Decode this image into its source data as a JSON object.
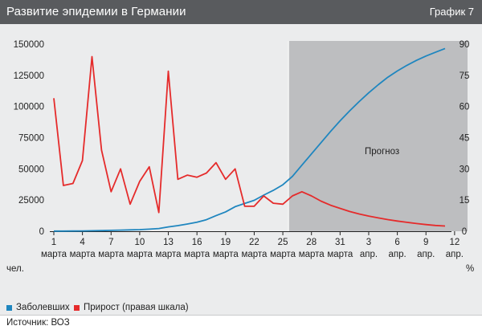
{
  "header": {
    "title": "Развитие эпидемии в Германии",
    "badge": "График 7"
  },
  "footer": {
    "source": "Источник: ВОЗ"
  },
  "chart_data": {
    "type": "line",
    "left_axis": {
      "min": 0,
      "max": 150000,
      "ticks": [
        "0",
        "25000",
        "50000",
        "75000",
        "100000",
        "125000",
        "150000"
      ],
      "unit": "чел."
    },
    "right_axis": {
      "min": 0,
      "max": 90,
      "ticks": [
        "0",
        "15",
        "30",
        "45",
        "60",
        "75",
        "90"
      ],
      "unit": "%"
    },
    "x_ticks": [
      {
        "day": "1",
        "month": "марта"
      },
      {
        "day": "4",
        "month": "марта"
      },
      {
        "day": "7",
        "month": "марта"
      },
      {
        "day": "10",
        "month": "марта"
      },
      {
        "day": "13",
        "month": "марта"
      },
      {
        "day": "16",
        "month": "марта"
      },
      {
        "day": "19",
        "month": "марта"
      },
      {
        "day": "22",
        "month": "марта"
      },
      {
        "day": "25",
        "month": "марта"
      },
      {
        "day": "28",
        "month": "марта"
      },
      {
        "day": "31",
        "month": "марта"
      },
      {
        "day": "3",
        "month": "апр."
      },
      {
        "day": "6",
        "month": "апр."
      },
      {
        "day": "9",
        "month": "апр."
      },
      {
        "day": "12",
        "month": "апр."
      }
    ],
    "forecast": {
      "label": "Прогноз",
      "start_day": 25.6
    },
    "series": [
      {
        "name": "Заболевших",
        "axis": "left",
        "color": "#1f86bf",
        "points": [
          [
            1,
            130
          ],
          [
            2,
            150
          ],
          [
            3,
            190
          ],
          [
            4,
            250
          ],
          [
            5,
            380
          ],
          [
            6,
            500
          ],
          [
            7,
            680
          ],
          [
            8,
            900
          ],
          [
            9,
            1100
          ],
          [
            10,
            1300
          ],
          [
            11,
            1700
          ],
          [
            12,
            2200
          ],
          [
            13,
            3500
          ],
          [
            14,
            4500
          ],
          [
            15,
            5800
          ],
          [
            16,
            7200
          ],
          [
            17,
            9300
          ],
          [
            18,
            12500
          ],
          [
            19,
            15500
          ],
          [
            20,
            19700
          ],
          [
            21,
            22300
          ],
          [
            22,
            24800
          ],
          [
            23,
            29000
          ],
          [
            24,
            32800
          ],
          [
            25,
            37300
          ],
          [
            26,
            44000
          ],
          [
            27,
            53000
          ],
          [
            28,
            62000
          ],
          [
            29,
            71000
          ],
          [
            30,
            80000
          ],
          [
            31,
            88500
          ],
          [
            32,
            96500
          ],
          [
            33,
            104000
          ],
          [
            34,
            111000
          ],
          [
            35,
            117500
          ],
          [
            36,
            123500
          ],
          [
            37,
            128500
          ],
          [
            38,
            133000
          ],
          [
            39,
            137000
          ],
          [
            40,
            140500
          ],
          [
            41,
            143500
          ],
          [
            42,
            146500
          ]
        ]
      },
      {
        "name": "Прирост (правая шкала)",
        "axis": "right",
        "color": "#e52b2b",
        "points": [
          [
            1,
            64
          ],
          [
            2,
            22
          ],
          [
            3,
            23
          ],
          [
            4,
            34
          ],
          [
            5,
            84
          ],
          [
            6,
            39
          ],
          [
            7,
            19
          ],
          [
            8,
            30
          ],
          [
            9,
            13
          ],
          [
            10,
            24
          ],
          [
            11,
            31
          ],
          [
            12,
            9
          ],
          [
            13,
            77
          ],
          [
            14,
            25
          ],
          [
            15,
            27
          ],
          [
            16,
            26
          ],
          [
            17,
            28
          ],
          [
            18,
            33
          ],
          [
            19,
            25
          ],
          [
            20,
            30
          ],
          [
            21,
            12
          ],
          [
            22,
            12
          ],
          [
            23,
            17
          ],
          [
            24,
            13.5
          ],
          [
            25,
            13
          ],
          [
            26,
            17
          ],
          [
            27,
            19
          ],
          [
            28,
            17
          ],
          [
            29,
            14.5
          ],
          [
            30,
            12.5
          ],
          [
            31,
            11
          ],
          [
            32,
            9.5
          ],
          [
            33,
            8.3
          ],
          [
            34,
            7.3
          ],
          [
            35,
            6.4
          ],
          [
            36,
            5.6
          ],
          [
            37,
            4.9
          ],
          [
            38,
            4.3
          ],
          [
            39,
            3.7
          ],
          [
            40,
            3.2
          ],
          [
            41,
            2.8
          ],
          [
            42,
            2.5
          ]
        ]
      }
    ]
  }
}
